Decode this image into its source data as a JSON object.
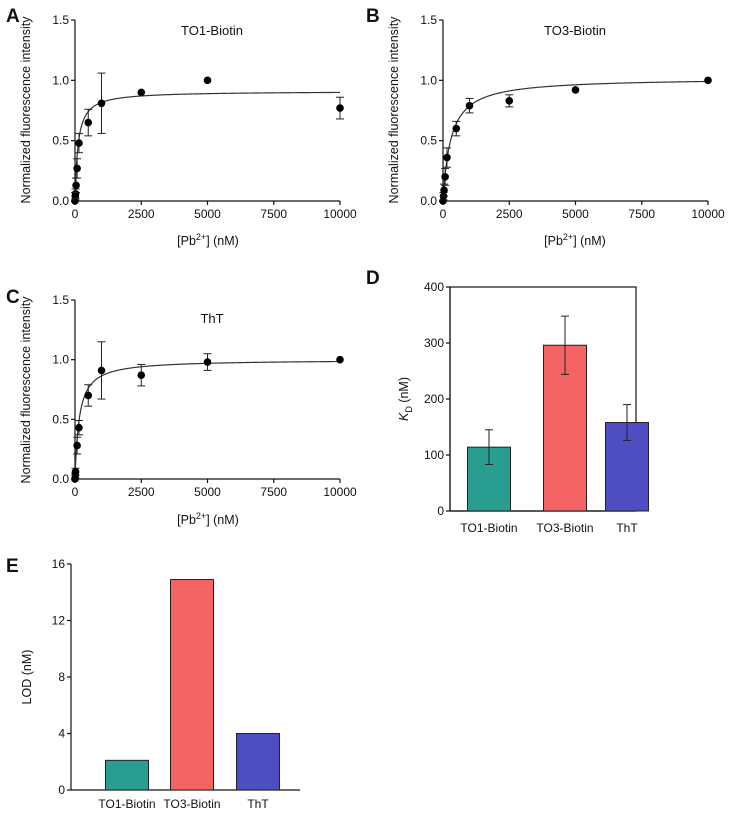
{
  "chart_data": [
    {
      "panel": "A",
      "type": "scatter",
      "title": "TO1-Biotin",
      "xlabel_base": "[Pb",
      "xlabel_sup": "2+",
      "xlabel_tail": "] (nM)",
      "ylabel": "Normalized fluorescence intensity",
      "xlim": [
        0,
        10000
      ],
      "ylim": [
        0,
        1.5
      ],
      "xticks": [
        "0",
        "2500",
        "5000",
        "7500",
        "10000"
      ],
      "yticks": [
        "0.0",
        "0.5",
        "1.0",
        "1.5"
      ],
      "fit": {
        "bmax": 0.91,
        "kd": 114
      },
      "points": [
        {
          "x": 0,
          "y": 0.0,
          "err": 0.0
        },
        {
          "x": 10,
          "y": 0.04,
          "err": 0.03
        },
        {
          "x": 20,
          "y": 0.06,
          "err": 0.04
        },
        {
          "x": 40,
          "y": 0.13,
          "err": 0.06
        },
        {
          "x": 80,
          "y": 0.27,
          "err": 0.08
        },
        {
          "x": 150,
          "y": 0.48,
          "err": 0.08
        },
        {
          "x": 500,
          "y": 0.65,
          "err": 0.11
        },
        {
          "x": 1000,
          "y": 0.81,
          "err": 0.25
        },
        {
          "x": 2500,
          "y": 0.9,
          "err": 0.0
        },
        {
          "x": 5000,
          "y": 1.0,
          "err": 0.0
        },
        {
          "x": 10000,
          "y": 0.77,
          "err": 0.09
        }
      ]
    },
    {
      "panel": "B",
      "type": "scatter",
      "title": "TO3-Biotin",
      "xlabel_base": "[Pb",
      "xlabel_sup": "2+",
      "xlabel_tail": "] (nM)",
      "ylabel": "Normalized fluorescence intensity",
      "xlim": [
        0,
        10000
      ],
      "ylim": [
        0,
        1.5
      ],
      "xticks": [
        "0",
        "2500",
        "5000",
        "7500",
        "10000"
      ],
      "yticks": [
        "0.0",
        "0.5",
        "1.0",
        "1.5"
      ],
      "fit": {
        "bmax": 1.02,
        "kd": 296
      },
      "points": [
        {
          "x": 0,
          "y": 0.0,
          "err": 0.0
        },
        {
          "x": 20,
          "y": 0.04,
          "err": 0.03
        },
        {
          "x": 40,
          "y": 0.09,
          "err": 0.05
        },
        {
          "x": 80,
          "y": 0.2,
          "err": 0.07
        },
        {
          "x": 150,
          "y": 0.36,
          "err": 0.08
        },
        {
          "x": 500,
          "y": 0.6,
          "err": 0.06
        },
        {
          "x": 1000,
          "y": 0.79,
          "err": 0.06
        },
        {
          "x": 2500,
          "y": 0.83,
          "err": 0.05
        },
        {
          "x": 5000,
          "y": 0.92,
          "err": 0.0
        },
        {
          "x": 10000,
          "y": 1.0,
          "err": 0.0
        }
      ]
    },
    {
      "panel": "C",
      "type": "scatter",
      "title": "ThT",
      "xlabel_base": "[Pb",
      "xlabel_sup": "2+",
      "xlabel_tail": "] (nM)",
      "ylabel": "Normalized fluorescence intensity",
      "xlim": [
        0,
        10000
      ],
      "ylim": [
        0,
        1.5
      ],
      "xticks": [
        "0",
        "2500",
        "5000",
        "7500",
        "10000"
      ],
      "yticks": [
        "0.0",
        "0.5",
        "1.0",
        "1.5"
      ],
      "fit": {
        "bmax": 1.0,
        "kd": 158
      },
      "points": [
        {
          "x": 0,
          "y": 0.0,
          "err": 0.0
        },
        {
          "x": 10,
          "y": 0.03,
          "err": 0.02
        },
        {
          "x": 20,
          "y": 0.06,
          "err": 0.03
        },
        {
          "x": 80,
          "y": 0.28,
          "err": 0.07
        },
        {
          "x": 150,
          "y": 0.43,
          "err": 0.06
        },
        {
          "x": 500,
          "y": 0.7,
          "err": 0.09
        },
        {
          "x": 1000,
          "y": 0.91,
          "err": 0.24
        },
        {
          "x": 2500,
          "y": 0.87,
          "err": 0.09
        },
        {
          "x": 5000,
          "y": 0.98,
          "err": 0.07
        },
        {
          "x": 10000,
          "y": 1.0,
          "err": 0.0
        }
      ]
    },
    {
      "panel": "D",
      "type": "bar",
      "ylabel_k": "K",
      "ylabel_sub": "D",
      "ylabel_tail": " (nM)",
      "ylim": [
        0,
        400
      ],
      "yticks": [
        "0",
        "100",
        "200",
        "300",
        "400"
      ],
      "categories": [
        "TO1-Biotin",
        "TO3-Biotin",
        "ThT"
      ],
      "values": [
        114,
        296,
        158
      ],
      "errors": [
        31,
        52,
        32
      ],
      "colors": [
        "#2a9d91",
        "#f46464",
        "#4e4ec2"
      ]
    },
    {
      "panel": "E",
      "type": "bar",
      "ylabel": "LOD (nM)",
      "ylim": [
        0,
        16
      ],
      "yticks": [
        "0",
        "4",
        "8",
        "12",
        "16"
      ],
      "categories": [
        "TO1-Biotin",
        "TO3-Biotin",
        "ThT"
      ],
      "values": [
        2.1,
        14.9,
        4.0
      ],
      "colors": [
        "#2a9d91",
        "#f46464",
        "#4e4ec2"
      ]
    }
  ]
}
